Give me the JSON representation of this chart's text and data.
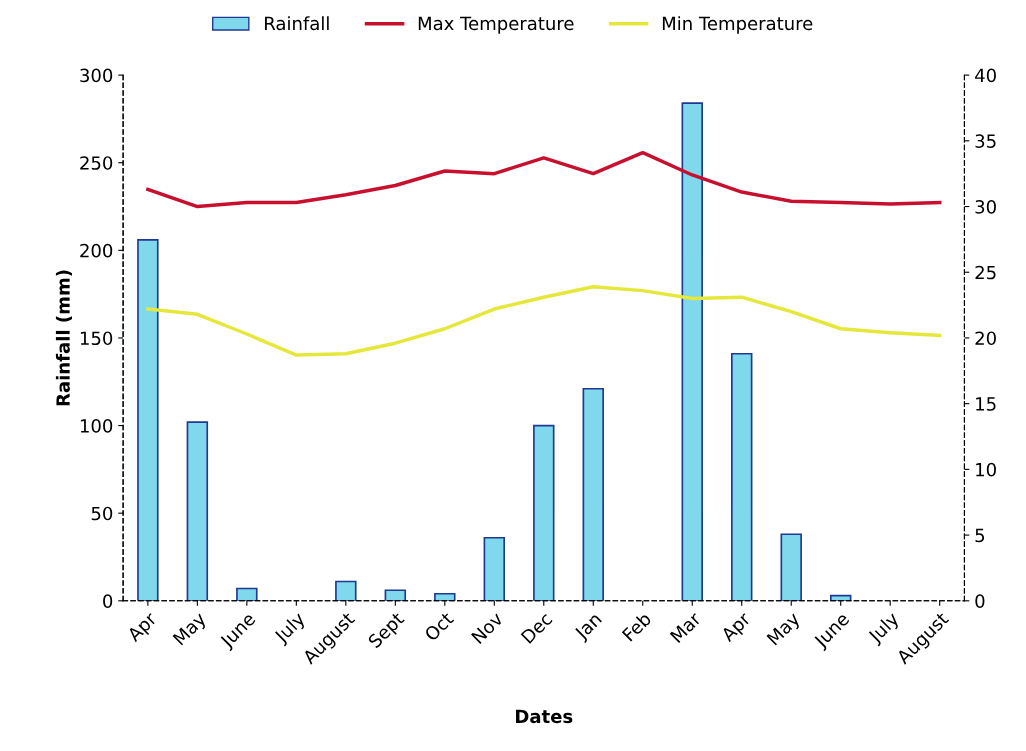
{
  "chart_data": {
    "type": "bar",
    "xlabel": "Dates",
    "ylabel": "Rainfall (mm)",
    "categories": [
      "Apr",
      "May",
      "June",
      "July",
      "August",
      "Sept",
      "Oct",
      "Nov",
      "Dec",
      "Jan",
      "Feb",
      "Mar",
      "Apr",
      "May",
      "June",
      "July",
      "August"
    ],
    "series": [
      {
        "name": "Rainfall",
        "color": "#7fd8ec",
        "values": [
          206,
          102,
          7,
          null,
          11,
          6,
          4,
          36,
          100,
          121,
          null,
          284,
          141,
          38,
          3,
          null,
          null
        ]
      },
      {
        "name": "Max Temperature",
        "type": "line",
        "axis": "y2",
        "color": "#c8102e",
        "values": [
          31.3,
          30.0,
          30.3,
          30.3,
          30.9,
          31.6,
          32.7,
          32.5,
          33.7,
          32.5,
          34.1,
          32.4,
          31.1,
          30.4,
          30.3,
          30.2,
          30.3
        ]
      },
      {
        "name": "Min Temperature",
        "type": "line",
        "axis": "y2",
        "color": "#e5e83a",
        "values": [
          22.2,
          21.8,
          20.3,
          18.7,
          18.8,
          19.6,
          20.7,
          22.2,
          23.1,
          23.9,
          23.6,
          23.0,
          23.1,
          22.0,
          20.7,
          20.4,
          20.2
        ]
      }
    ],
    "ylim": [
      0,
      300
    ],
    "yticks": [
      0,
      50,
      100,
      150,
      200,
      250,
      300
    ],
    "y2lim": [
      0,
      40
    ],
    "y2ticks": [
      0,
      5,
      10,
      15,
      20,
      25,
      30,
      35,
      40
    ],
    "grid": false,
    "legend": "top",
    "marker": "none",
    "line_style": "solid"
  }
}
